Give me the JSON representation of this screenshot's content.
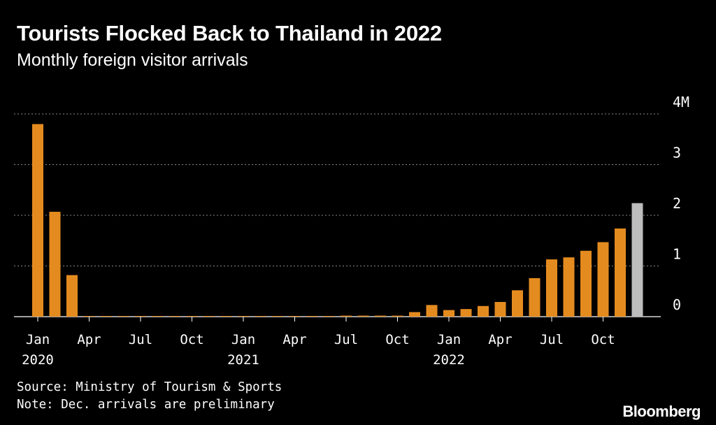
{
  "header": {
    "title": "Tourists Flocked Back to Thailand in 2022",
    "subtitle": "Monthly foreign visitor arrivals"
  },
  "footer": {
    "source": "Source: Ministry of Tourism & Sports",
    "note": "Note: Dec. arrivals are preliminary",
    "brand": "Bloomberg"
  },
  "colors": {
    "bar": "#E48B1F",
    "preliminary_bar": "#BDBDBD",
    "grid": "#8a8a8a",
    "background": "#000000"
  },
  "chart_data": {
    "type": "bar",
    "title": "Tourists Flocked Back to Thailand in 2022",
    "subtitle": "Monthly foreign visitor arrivals",
    "xlabel": "",
    "ylabel": "",
    "ylim": [
      0,
      4
    ],
    "y_unit": "M",
    "y_ticks": [
      0,
      1,
      2,
      3,
      4
    ],
    "y_tick_labels": [
      "0",
      "1",
      "2",
      "3",
      "4M"
    ],
    "grid": true,
    "categories": [
      "2020-01",
      "2020-02",
      "2020-03",
      "2020-04",
      "2020-05",
      "2020-06",
      "2020-07",
      "2020-08",
      "2020-09",
      "2020-10",
      "2020-11",
      "2020-12",
      "2021-01",
      "2021-02",
      "2021-03",
      "2021-04",
      "2021-05",
      "2021-06",
      "2021-07",
      "2021-08",
      "2021-09",
      "2021-10",
      "2021-11",
      "2021-12",
      "2022-01",
      "2022-02",
      "2022-03",
      "2022-04",
      "2022-05",
      "2022-06",
      "2022-07",
      "2022-08",
      "2022-09",
      "2022-10",
      "2022-11",
      "2022-12"
    ],
    "values": [
      3.8,
      2.07,
      0.82,
      0.0,
      0.0,
      0.0,
      0.0,
      0.0,
      0.0,
      0.01,
      0.01,
      0.01,
      0.01,
      0.01,
      0.01,
      0.01,
      0.01,
      0.01,
      0.02,
      0.02,
      0.02,
      0.02,
      0.09,
      0.23,
      0.13,
      0.15,
      0.21,
      0.29,
      0.52,
      0.76,
      1.13,
      1.17,
      1.3,
      1.47,
      1.74,
      2.24
    ],
    "preliminary": [
      false,
      false,
      false,
      false,
      false,
      false,
      false,
      false,
      false,
      false,
      false,
      false,
      false,
      false,
      false,
      false,
      false,
      false,
      false,
      false,
      false,
      false,
      false,
      false,
      false,
      false,
      false,
      false,
      false,
      false,
      false,
      false,
      false,
      false,
      false,
      true
    ],
    "x_tick_labels": [
      {
        "index": 0,
        "label": "Jan",
        "year": "2020"
      },
      {
        "index": 3,
        "label": "Apr"
      },
      {
        "index": 6,
        "label": "Jul"
      },
      {
        "index": 9,
        "label": "Oct"
      },
      {
        "index": 12,
        "label": "Jan",
        "year": "2021"
      },
      {
        "index": 15,
        "label": "Apr"
      },
      {
        "index": 18,
        "label": "Jul"
      },
      {
        "index": 21,
        "label": "Oct"
      },
      {
        "index": 24,
        "label": "Jan",
        "year": "2022"
      },
      {
        "index": 27,
        "label": "Apr"
      },
      {
        "index": 30,
        "label": "Jul"
      },
      {
        "index": 33,
        "label": "Oct"
      }
    ]
  }
}
